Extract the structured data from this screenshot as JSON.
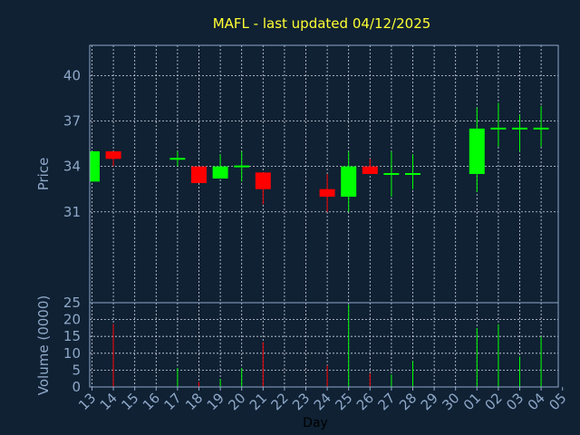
{
  "title": "MAFL - last updated 04/12/2025",
  "colors": {
    "background": "#0f2133",
    "up": "#00ff00",
    "down": "#ff0000",
    "title": "#ffff33",
    "axis_text": "#8fa8c8",
    "grid": "#cfd8e4"
  },
  "chart_data": {
    "type": "candlestick",
    "title": "MAFL - last updated 04/12/2025",
    "xlabel": "Day",
    "price_panel": {
      "ylabel": "Price",
      "ylim": [
        25,
        42
      ],
      "yticks": [
        25,
        31,
        34,
        37,
        40
      ]
    },
    "volume_panel": {
      "ylabel": "Volume (0000)",
      "ylim": [
        0,
        25
      ],
      "yticks": [
        0,
        5,
        10,
        15,
        20,
        25
      ]
    },
    "categories": [
      "13",
      "14",
      "15",
      "16",
      "17",
      "18",
      "19",
      "20",
      "21",
      "22",
      "23",
      "24",
      "25",
      "26",
      "27",
      "28",
      "29",
      "30",
      "01",
      "02",
      "03",
      "04",
      "05"
    ],
    "grid": true,
    "candles": [
      {
        "day": "13",
        "open": 33.0,
        "high": 35.0,
        "low": 33.0,
        "close": 35.0,
        "volume": 0
      },
      {
        "day": "14",
        "open": 35.0,
        "high": 35.0,
        "low": 34.0,
        "close": 34.5,
        "volume": 18.7
      },
      {
        "day": "17",
        "open": 34.5,
        "high": 35.0,
        "low": 34.0,
        "close": 34.5,
        "volume": 5.6
      },
      {
        "day": "18",
        "open": 34.0,
        "high": 34.0,
        "low": 32.9,
        "close": 32.9,
        "volume": 1.5
      },
      {
        "day": "19",
        "open": 33.2,
        "high": 34.8,
        "low": 33.2,
        "close": 34.0,
        "volume": 2.4
      },
      {
        "day": "20",
        "open": 34.0,
        "high": 35.0,
        "low": 33.0,
        "close": 34.0,
        "volume": 5.6
      },
      {
        "day": "21",
        "open": 33.6,
        "high": 33.6,
        "low": 31.5,
        "close": 32.5,
        "volume": 13.3
      },
      {
        "day": "24",
        "open": 32.5,
        "high": 33.5,
        "low": 31.0,
        "close": 32.0,
        "volume": 6.4
      },
      {
        "day": "25",
        "open": 32.0,
        "high": 35.0,
        "low": 31.0,
        "close": 34.0,
        "volume": 24.4
      },
      {
        "day": "26",
        "open": 34.0,
        "high": 34.5,
        "low": 33.5,
        "close": 33.5,
        "volume": 4.0
      },
      {
        "day": "27",
        "open": 33.5,
        "high": 35.0,
        "low": 32.0,
        "close": 33.5,
        "volume": 3.7
      },
      {
        "day": "28",
        "open": 33.5,
        "high": 34.8,
        "low": 32.5,
        "close": 33.5,
        "volume": 7.7
      },
      {
        "day": "01",
        "open": 33.5,
        "high": 37.9,
        "low": 32.3,
        "close": 36.5,
        "volume": 17.5
      },
      {
        "day": "02",
        "open": 36.5,
        "high": 38.2,
        "low": 35.3,
        "close": 36.5,
        "volume": 18.6
      },
      {
        "day": "03",
        "open": 36.5,
        "high": 37.4,
        "low": 35.0,
        "close": 36.5,
        "volume": 9.0
      },
      {
        "day": "04",
        "open": 36.5,
        "high": 38.0,
        "low": 35.3,
        "close": 36.5,
        "volume": 14.9
      }
    ]
  }
}
